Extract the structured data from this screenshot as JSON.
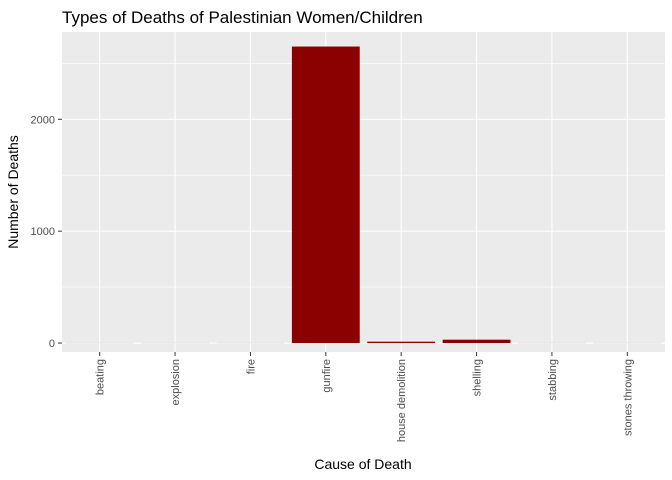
{
  "chart_data": {
    "type": "bar",
    "title": "Types of Deaths of Palestinian Women/Children",
    "xlabel": "Cause of Death",
    "ylabel": "Number of Deaths",
    "categories": [
      "beating",
      "explosion",
      "fire",
      "gunfire",
      "house demolition",
      "shelling",
      "stabbing",
      "stones throwing"
    ],
    "values": [
      1,
      1,
      1,
      2650,
      12,
      30,
      1,
      1
    ],
    "ylim": [
      -80,
      2780
    ],
    "yticks": [
      0,
      1000,
      2000
    ],
    "ytick_labels": [
      "0",
      "1000",
      "2000"
    ],
    "grid": true,
    "legend": "none",
    "colors": {
      "bar": "#8B0000",
      "panel": "#EBEBEB",
      "grid_major": "#FFFFFF",
      "tick": "#333333"
    }
  }
}
